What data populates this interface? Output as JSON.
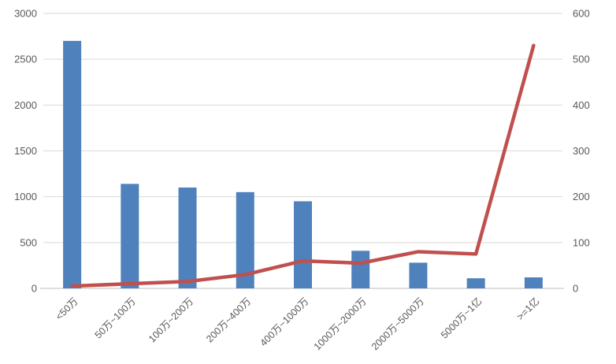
{
  "chart_data": {
    "type": "bar",
    "subtype": "combo-bar-line-dual-axis",
    "title": "",
    "xlabel": "",
    "ylabel_left": "",
    "ylabel_right": "",
    "categories": [
      "<50万",
      "50万~100万",
      "100万~200万",
      "200万~400万",
      "400万~1000万",
      "1000万~2000万",
      "2000万~5000万",
      "5000万~1亿",
      ">=1亿"
    ],
    "series": [
      {
        "name": "bar",
        "type": "bar",
        "axis": "left",
        "color": "#4F81BD",
        "values": [
          2700,
          1140,
          1100,
          1050,
          950,
          410,
          280,
          110,
          120
        ]
      },
      {
        "name": "line",
        "type": "line",
        "axis": "right",
        "color": "#C0504D",
        "values": [
          5,
          10,
          15,
          30,
          60,
          55,
          80,
          75,
          530
        ]
      }
    ],
    "left_axis": {
      "min": 0,
      "max": 3000,
      "step": 500,
      "ticks": [
        0,
        500,
        1000,
        1500,
        2000,
        2500,
        3000
      ]
    },
    "right_axis": {
      "min": 0,
      "max": 600,
      "step": 100,
      "ticks": [
        0,
        100,
        200,
        300,
        400,
        500,
        600
      ]
    },
    "grid": true,
    "legend": "none",
    "x_label_rotation_deg": 45,
    "colors": {
      "bar": "#4F81BD",
      "line": "#C0504D",
      "gridline": "#D9D9D9",
      "axis_line": "#C9C9C9",
      "tick_text": "#595959",
      "background": "#FFFFFF"
    }
  }
}
